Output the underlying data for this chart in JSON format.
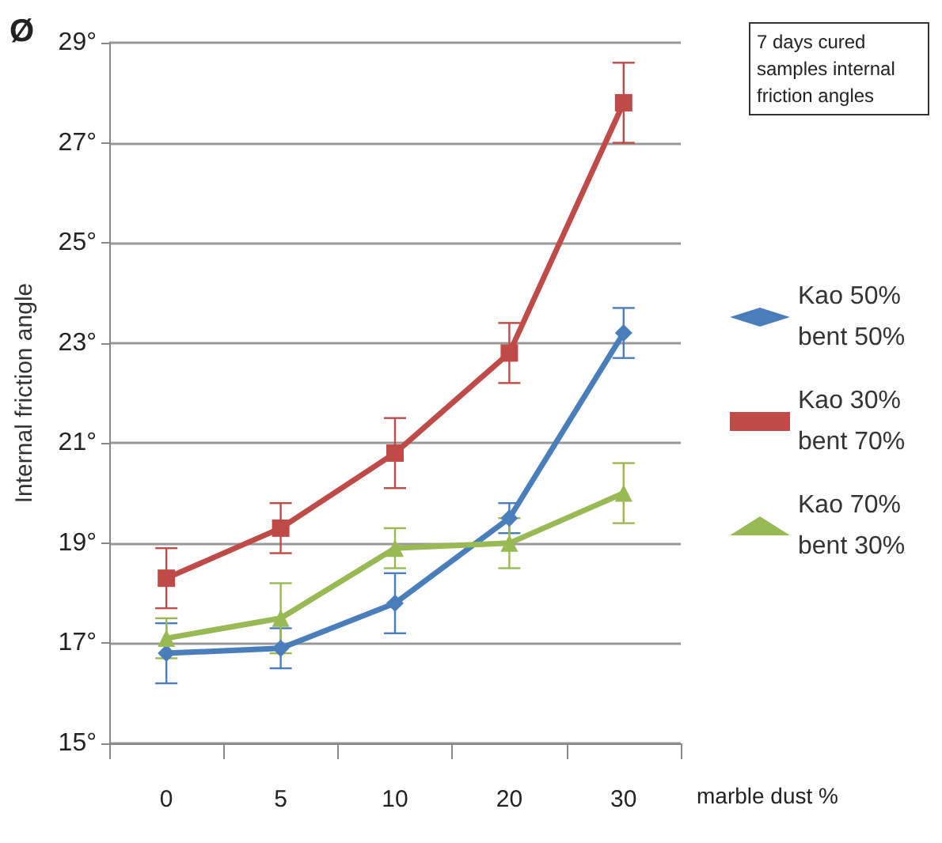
{
  "chart_data": {
    "type": "line",
    "ylabel": "Internal friction angle",
    "xlabel": "marble dust %",
    "annotations": [
      "Ø",
      "7 days cured samples internal friction angles"
    ],
    "categories": [
      "0",
      "5",
      "10",
      "20",
      "30"
    ],
    "ylim": [
      15,
      29
    ],
    "yticks": [
      {
        "value": 15,
        "label": "15°"
      },
      {
        "value": 17,
        "label": "17°"
      },
      {
        "value": 19,
        "label": "19°"
      },
      {
        "value": 21,
        "label": "21°"
      },
      {
        "value": 23,
        "label": "23°"
      },
      {
        "value": 25,
        "label": "25°"
      },
      {
        "value": 27,
        "label": "27°"
      },
      {
        "value": 29,
        "label": "29°"
      }
    ],
    "grid": "y",
    "legend": "right",
    "line_style": "solid",
    "series": [
      {
        "name": "Kao 50% bent 50%",
        "color": "#4a7ebb",
        "marker": "diamond",
        "values": [
          16.8,
          16.9,
          17.8,
          19.5,
          23.2
        ],
        "errors": [
          0.6,
          0.4,
          0.6,
          0.3,
          0.5
        ]
      },
      {
        "name": "Kao 30% bent 70%",
        "color": "#be4b48",
        "marker": "square",
        "values": [
          18.3,
          19.3,
          20.8,
          22.8,
          27.8
        ],
        "errors": [
          0.6,
          0.5,
          0.7,
          0.6,
          0.8
        ]
      },
      {
        "name": "Kao 70% bent 30%",
        "color": "#98b954",
        "marker": "triangle",
        "values": [
          17.1,
          17.5,
          18.9,
          19.0,
          20.0
        ],
        "errors": [
          0.4,
          0.7,
          0.4,
          0.5,
          0.6
        ]
      }
    ]
  }
}
